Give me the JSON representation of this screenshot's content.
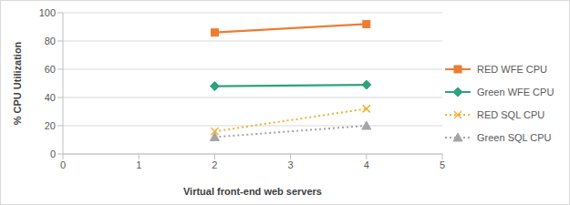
{
  "chart_data": {
    "type": "line",
    "x_label": "Virtual front-end web servers",
    "y_label": "% CPU Utilization",
    "x": [
      2,
      4
    ],
    "xlim": [
      0,
      5
    ],
    "xticks": [
      0,
      1,
      2,
      3,
      4,
      5
    ],
    "ylim": [
      0,
      100
    ],
    "yticks": [
      0,
      20,
      40,
      60,
      80,
      100
    ],
    "grid": true,
    "legend": "right",
    "series": [
      {
        "name": "RED WFE CPU",
        "color": "#ED7D31",
        "marker": "square",
        "line_style": "solid",
        "values": [
          86,
          92
        ]
      },
      {
        "name": "Green WFE CPU",
        "color": "#2EA37A",
        "marker": "diamond",
        "line_style": "solid",
        "values": [
          48,
          49
        ]
      },
      {
        "name": "RED SQL CPU",
        "color": "#F2B134",
        "marker": "x",
        "line_style": "dotted",
        "values": [
          16,
          32
        ]
      },
      {
        "name": "Green SQL CPU",
        "color": "#A5A5A5",
        "marker": "triangle",
        "line_style": "dotted",
        "values": [
          12,
          20
        ]
      }
    ]
  }
}
